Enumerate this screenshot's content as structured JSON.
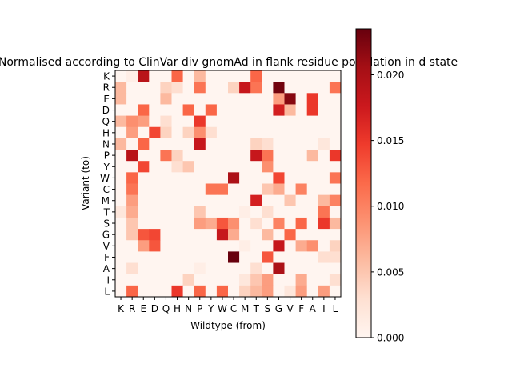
{
  "chart_data": {
    "type": "heatmap",
    "title": "Normalised according to ClinVar div gnomAd in flank residue population in d state",
    "xlabel": "Wildtype (from)",
    "ylabel": "Variant (to)",
    "x_categories": [
      "K",
      "R",
      "E",
      "D",
      "Q",
      "H",
      "N",
      "P",
      "Y",
      "W",
      "C",
      "M",
      "T",
      "S",
      "G",
      "V",
      "F",
      "A",
      "I",
      "L"
    ],
    "y_categories": [
      "K",
      "R",
      "E",
      "D",
      "Q",
      "H",
      "N",
      "P",
      "Y",
      "W",
      "C",
      "M",
      "T",
      "S",
      "G",
      "V",
      "F",
      "A",
      "I",
      "L"
    ],
    "colormap": "Reds",
    "vmin": 0.0,
    "vmax": 0.0235,
    "colorbar_ticks": [
      0.0,
      0.005,
      0.01,
      0.015,
      0.02
    ],
    "colorbar_tick_labels": [
      "0.000",
      "0.005",
      "0.010",
      "0.015",
      "0.020"
    ],
    "values": [
      [
        0,
        0.001,
        0.019,
        0,
        0,
        0.012,
        0,
        0.006,
        0,
        0,
        0,
        0,
        0.012,
        0,
        0,
        0,
        0,
        0,
        0,
        0
      ],
      [
        0.006,
        0,
        0,
        0,
        0.004,
        0.003,
        0,
        0.011,
        0,
        0,
        0.004,
        0.018,
        0.011,
        0,
        0.023,
        0,
        0,
        0,
        0,
        0.011
      ],
      [
        0.006,
        0,
        0,
        0,
        0.006,
        0,
        0,
        0,
        0,
        0,
        0,
        0,
        0,
        0,
        0.008,
        0.022,
        0,
        0.015,
        0,
        0
      ],
      [
        0,
        0,
        0.012,
        0,
        0,
        0,
        0.012,
        0,
        0.012,
        0,
        0,
        0,
        0,
        0,
        0.017,
        0.006,
        0,
        0.015,
        0,
        0
      ],
      [
        0.006,
        0.009,
        0.008,
        0,
        0.003,
        0,
        0,
        0.015,
        0,
        0,
        0,
        0,
        0,
        0,
        0,
        0,
        0,
        0,
        0,
        0
      ],
      [
        0,
        0.008,
        0,
        0.014,
        0.004,
        0,
        0.004,
        0.009,
        0.003,
        0,
        0,
        0,
        0,
        0,
        0,
        0,
        0,
        0,
        0,
        0
      ],
      [
        0.006,
        0,
        0.012,
        0,
        0,
        0,
        0,
        0.018,
        0,
        0,
        0,
        0,
        0.004,
        0.003,
        0,
        0,
        0,
        0,
        0.002,
        0
      ],
      [
        0,
        0.019,
        0,
        0,
        0.011,
        0.004,
        0,
        0,
        0,
        0,
        0,
        0,
        0.018,
        0.011,
        0,
        0,
        0,
        0.006,
        0,
        0.015
      ],
      [
        0,
        0,
        0.014,
        0,
        0,
        0.003,
        0.005,
        0,
        0,
        0,
        0,
        0,
        0,
        0.009,
        0,
        0,
        0,
        0,
        0,
        0
      ],
      [
        0,
        0.012,
        0,
        0,
        0,
        0,
        0,
        0,
        0,
        0,
        0.02,
        0,
        0,
        0,
        0.014,
        0,
        0,
        0,
        0,
        0.011
      ],
      [
        0,
        0.011,
        0,
        0,
        0,
        0,
        0,
        0,
        0.011,
        0.011,
        0,
        0,
        0,
        0.005,
        0.007,
        0,
        0.01,
        0,
        0,
        0
      ],
      [
        0,
        0.008,
        0,
        0,
        0,
        0,
        0,
        0,
        0,
        0,
        0,
        0,
        0.017,
        0,
        0,
        0.005,
        0,
        0,
        0.006,
        0.01
      ],
      [
        0.002,
        0.007,
        0,
        0,
        0,
        0,
        0,
        0.005,
        0,
        0,
        0,
        0.001,
        0,
        0.003,
        0,
        0,
        0,
        0,
        0.011,
        0
      ],
      [
        0,
        0.005,
        0,
        0,
        0,
        0,
        0,
        0.008,
        0.007,
        0.013,
        0.009,
        0,
        0.003,
        0,
        0.01,
        0,
        0.012,
        0,
        0.015,
        0.006
      ],
      [
        0,
        0.005,
        0.013,
        0.014,
        0,
        0,
        0,
        0,
        0,
        0.018,
        0.007,
        0,
        0,
        0.006,
        0,
        0.012,
        0,
        0,
        0,
        0
      ],
      [
        0,
        0,
        0.008,
        0.013,
        0,
        0,
        0,
        0,
        0,
        0,
        0,
        0.001,
        0,
        0,
        0.018,
        0,
        0.007,
        0.009,
        0,
        0.004
      ],
      [
        0,
        0,
        0,
        0,
        0,
        0,
        0,
        0,
        0,
        0,
        0.0235,
        0,
        0,
        0.013,
        0,
        0,
        0,
        0,
        0.003,
        0.003
      ],
      [
        0,
        0.003,
        0,
        0,
        0,
        0,
        0,
        0.001,
        0,
        0,
        0,
        0,
        0.003,
        0,
        0.02,
        0,
        0,
        0,
        0,
        0
      ],
      [
        0,
        0,
        0,
        0,
        0,
        0,
        0.004,
        0,
        0,
        0,
        0,
        0.002,
        0.005,
        0.008,
        0,
        0,
        0.007,
        0,
        0,
        0.003
      ],
      [
        0,
        0.012,
        0,
        0,
        0,
        0.015,
        0,
        0.012,
        0,
        0.012,
        0,
        0.004,
        0.006,
        0.008,
        0,
        0.002,
        0.008,
        0,
        0.008,
        0
      ]
    ]
  }
}
